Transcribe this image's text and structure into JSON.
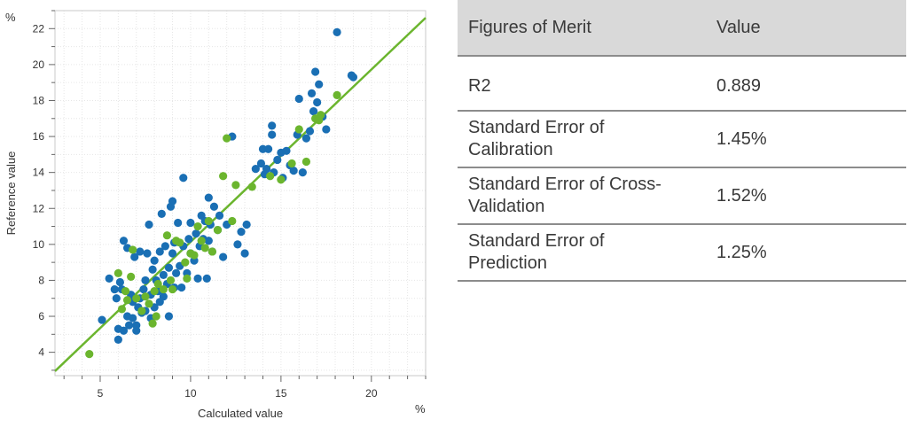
{
  "chart_data": {
    "type": "scatter",
    "xlabel": "Calculated value",
    "ylabel": "Reference value",
    "x_unit": "%",
    "y_unit": "%",
    "xlim": [
      2.5,
      23
    ],
    "ylim": [
      2.7,
      23
    ],
    "x_ticks": [
      5,
      10,
      15,
      20
    ],
    "y_ticks": [
      4,
      6,
      8,
      10,
      12,
      14,
      16,
      18,
      20,
      22
    ],
    "grid": true,
    "colors": {
      "blue": "#1a6fb4",
      "green": "#6bb52e",
      "line": "#6bb52e"
    },
    "regression_line": {
      "x": [
        2.5,
        23
      ],
      "y": [
        2.95,
        22.6
      ]
    },
    "series": [
      {
        "color": "#1a6fb4",
        "points": [
          [
            5.1,
            5.8
          ],
          [
            5.5,
            8.1
          ],
          [
            5.8,
            7.5
          ],
          [
            5.9,
            7.0
          ],
          [
            6.0,
            4.7
          ],
          [
            6.0,
            5.3
          ],
          [
            6.1,
            7.9
          ],
          [
            6.2,
            7.5
          ],
          [
            6.3,
            5.2
          ],
          [
            6.3,
            10.2
          ],
          [
            6.5,
            6.0
          ],
          [
            6.5,
            9.8
          ],
          [
            6.6,
            5.5
          ],
          [
            6.7,
            7.2
          ],
          [
            6.8,
            5.9
          ],
          [
            6.8,
            6.8
          ],
          [
            6.9,
            9.3
          ],
          [
            7.0,
            5.2
          ],
          [
            7.0,
            5.5
          ],
          [
            7.1,
            6.5
          ],
          [
            7.2,
            7.0
          ],
          [
            7.2,
            9.6
          ],
          [
            7.3,
            6.2
          ],
          [
            7.4,
            7.5
          ],
          [
            7.5,
            6.3
          ],
          [
            7.5,
            8.0
          ],
          [
            7.6,
            9.5
          ],
          [
            7.7,
            11.1
          ],
          [
            7.8,
            5.9
          ],
          [
            7.8,
            7.2
          ],
          [
            7.9,
            8.6
          ],
          [
            8.0,
            6.5
          ],
          [
            8.0,
            9.1
          ],
          [
            8.1,
            8.0
          ],
          [
            8.2,
            7.4
          ],
          [
            8.3,
            6.8
          ],
          [
            8.3,
            9.6
          ],
          [
            8.4,
            11.7
          ],
          [
            8.5,
            7.1
          ],
          [
            8.5,
            8.3
          ],
          [
            8.6,
            9.9
          ],
          [
            8.7,
            7.8
          ],
          [
            8.8,
            6.0
          ],
          [
            8.8,
            8.7
          ],
          [
            8.9,
            12.1
          ],
          [
            9.0,
            9.5
          ],
          [
            9.0,
            12.4
          ],
          [
            9.1,
            7.6
          ],
          [
            9.1,
            10.1
          ],
          [
            9.2,
            8.4
          ],
          [
            9.3,
            11.2
          ],
          [
            9.4,
            8.8
          ],
          [
            9.5,
            7.6
          ],
          [
            9.6,
            9.9
          ],
          [
            9.6,
            13.7
          ],
          [
            9.8,
            8.4
          ],
          [
            9.9,
            10.3
          ],
          [
            10.0,
            9.5
          ],
          [
            10.0,
            11.2
          ],
          [
            10.2,
            9.1
          ],
          [
            10.3,
            10.6
          ],
          [
            10.4,
            8.1
          ],
          [
            10.5,
            9.9
          ],
          [
            10.6,
            11.6
          ],
          [
            10.7,
            10.3
          ],
          [
            10.8,
            11.3
          ],
          [
            10.9,
            8.1
          ],
          [
            11.0,
            10.2
          ],
          [
            11.0,
            12.6
          ],
          [
            11.1,
            11.1
          ],
          [
            11.2,
            9.6
          ],
          [
            11.3,
            12.1
          ],
          [
            11.5,
            10.8
          ],
          [
            11.6,
            11.6
          ],
          [
            11.8,
            9.3
          ],
          [
            12.0,
            11.1
          ],
          [
            12.3,
            16.0
          ],
          [
            12.6,
            10.0
          ],
          [
            12.8,
            10.7
          ],
          [
            13.0,
            9.5
          ],
          [
            13.1,
            11.1
          ],
          [
            13.6,
            14.2
          ],
          [
            13.9,
            14.5
          ],
          [
            14.0,
            15.3
          ],
          [
            14.1,
            13.9
          ],
          [
            14.2,
            14.2
          ],
          [
            14.3,
            15.3
          ],
          [
            14.5,
            16.1
          ],
          [
            14.5,
            16.6
          ],
          [
            14.6,
            14.0
          ],
          [
            14.8,
            14.7
          ],
          [
            15.0,
            15.1
          ],
          [
            15.1,
            13.7
          ],
          [
            15.3,
            15.2
          ],
          [
            15.5,
            14.4
          ],
          [
            15.7,
            14.1
          ],
          [
            15.9,
            16.1
          ],
          [
            16.0,
            18.1
          ],
          [
            16.2,
            14.0
          ],
          [
            16.4,
            15.9
          ],
          [
            16.6,
            16.3
          ],
          [
            16.7,
            18.4
          ],
          [
            16.8,
            17.4
          ],
          [
            16.9,
            19.6
          ],
          [
            17.0,
            17.9
          ],
          [
            17.1,
            18.9
          ],
          [
            17.3,
            17.1
          ],
          [
            17.5,
            16.4
          ],
          [
            18.1,
            21.8
          ],
          [
            18.9,
            19.4
          ],
          [
            19.0,
            19.3
          ]
        ]
      },
      {
        "color": "#6bb52e",
        "points": [
          [
            4.4,
            3.9
          ],
          [
            6.0,
            8.4
          ],
          [
            6.2,
            6.4
          ],
          [
            6.4,
            7.4
          ],
          [
            6.5,
            6.9
          ],
          [
            6.7,
            8.2
          ],
          [
            6.8,
            9.7
          ],
          [
            7.0,
            7.0
          ],
          [
            7.3,
            6.3
          ],
          [
            7.5,
            7.1
          ],
          [
            7.7,
            6.7
          ],
          [
            7.9,
            5.6
          ],
          [
            8.0,
            7.4
          ],
          [
            8.1,
            6.0
          ],
          [
            8.2,
            7.8
          ],
          [
            8.5,
            7.5
          ],
          [
            8.7,
            10.5
          ],
          [
            8.9,
            8.0
          ],
          [
            9.0,
            7.5
          ],
          [
            9.2,
            10.2
          ],
          [
            9.4,
            10.1
          ],
          [
            9.7,
            9.0
          ],
          [
            9.8,
            8.1
          ],
          [
            10.0,
            9.5
          ],
          [
            10.2,
            9.4
          ],
          [
            10.4,
            11.0
          ],
          [
            10.6,
            10.2
          ],
          [
            10.8,
            9.8
          ],
          [
            11.0,
            11.3
          ],
          [
            11.2,
            9.6
          ],
          [
            11.5,
            10.8
          ],
          [
            11.8,
            13.8
          ],
          [
            12.0,
            15.9
          ],
          [
            12.3,
            11.3
          ],
          [
            12.5,
            13.3
          ],
          [
            13.4,
            13.2
          ],
          [
            14.4,
            13.8
          ],
          [
            15.0,
            13.6
          ],
          [
            15.6,
            14.5
          ],
          [
            16.0,
            16.4
          ],
          [
            16.4,
            14.6
          ],
          [
            16.9,
            17.0
          ],
          [
            17.1,
            16.9
          ],
          [
            17.2,
            17.2
          ],
          [
            18.1,
            18.3
          ]
        ]
      }
    ]
  },
  "table": {
    "headers": {
      "metric": "Figures of Merit",
      "value": "Value"
    },
    "rows": [
      {
        "metric_line1": "R2",
        "metric_line2": "",
        "value": "0.889"
      },
      {
        "metric_line1": "Standard Error of",
        "metric_line2": "Calibration",
        "value": "1.45%"
      },
      {
        "metric_line1": "Standard Error of Cross-",
        "metric_line2": "Validation",
        "value": "1.52%"
      },
      {
        "metric_line1": "Standard Error of",
        "metric_line2": "Prediction",
        "value": "1.25%"
      }
    ]
  }
}
